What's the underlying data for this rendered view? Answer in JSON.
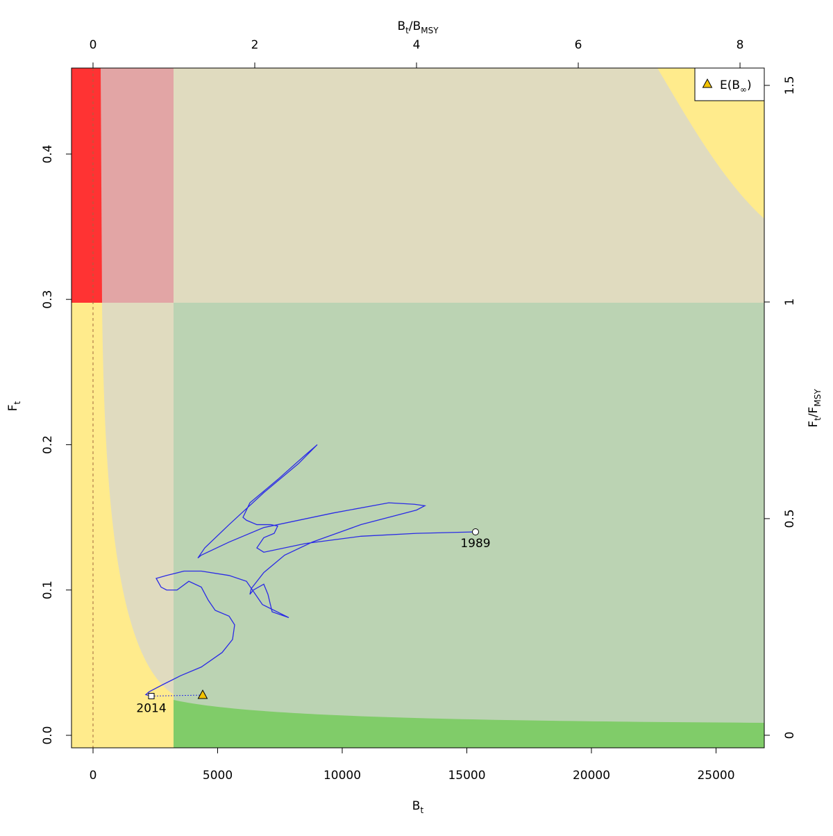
{
  "chart_data": {
    "type": "kobe",
    "xlabel": [
      {
        "text": "B"
      },
      {
        "sub": "t"
      }
    ],
    "ylabel": [
      {
        "text": "F"
      },
      {
        "sub": "t"
      }
    ],
    "x2label": [
      {
        "text": "B"
      },
      {
        "sub": "t"
      },
      {
        "text": "/B"
      },
      {
        "sub": "MSY"
      }
    ],
    "y2label": [
      {
        "text": "F"
      },
      {
        "sub": "t"
      },
      {
        "text": "/F"
      },
      {
        "sub": "MSY"
      }
    ],
    "xlim": [
      -864,
      26936
    ],
    "xticks": [
      0,
      5000,
      10000,
      15000,
      20000,
      25000
    ],
    "ylim": [
      -0.0086,
      0.4592
    ],
    "yticks": [
      {
        "value": 0,
        "label": "0.0"
      },
      0.1,
      0.2,
      0.3,
      0.4
    ],
    "x2lim": [
      -0.266,
      8.3
    ],
    "x2ticks": [
      0,
      2,
      4,
      6,
      8
    ],
    "y2lim": [
      -0.029,
      1.54
    ],
    "y2ticks": [
      0,
      0.5,
      1,
      1.5
    ],
    "series": [
      {
        "color": "#2a2ae6",
        "x": [
          15348,
          12980,
          10752,
          8524,
          6852,
          6574,
          6852,
          7270,
          7409,
          7131,
          6574,
          6156,
          6017,
          6295,
          7409,
          8524,
          8997,
          8245,
          6852,
          5460,
          4485,
          4206,
          4345,
          5460,
          6852,
          9638,
          11866,
          12897,
          13315,
          12980,
          10752,
          8802,
          7688,
          6852,
          6351,
          6295,
          6435,
          6852,
          7019,
          7187,
          7855,
          6797,
          6156,
          5460,
          4345,
          3649,
          2953,
          2535,
          2730,
          2953,
          3370,
          3844,
          4345,
          4624,
          4902,
          5460,
          5682,
          5599,
          5181,
          4345,
          3510,
          2813,
          2256,
          2117,
          2340
        ],
        "y": [
          0.14,
          0.139,
          0.137,
          0.132,
          0.126,
          0.129,
          0.136,
          0.139,
          0.144,
          0.145,
          0.145,
          0.148,
          0.15,
          0.16,
          0.176,
          0.193,
          0.2,
          0.187,
          0.167,
          0.145,
          0.129,
          0.122,
          0.124,
          0.133,
          0.143,
          0.153,
          0.16,
          0.159,
          0.158,
          0.155,
          0.145,
          0.133,
          0.124,
          0.112,
          0.101,
          0.097,
          0.1,
          0.104,
          0.097,
          0.085,
          0.081,
          0.09,
          0.106,
          0.11,
          0.113,
          0.113,
          0.11,
          0.108,
          0.102,
          0.1,
          0.1,
          0.106,
          0.102,
          0.093,
          0.086,
          0.082,
          0.076,
          0.066,
          0.057,
          0.047,
          0.041,
          0.035,
          0.03,
          0.028,
          0.027
        ]
      }
    ],
    "start_label": "1989",
    "end_label": "2014",
    "equilibrium": {
      "name": [
        {
          "text": "E(B"
        },
        {
          "sub": "∞"
        },
        {
          "text": ")"
        }
      ],
      "x": 4401,
      "y": 0.0277,
      "color": "#f2c200"
    }
  }
}
